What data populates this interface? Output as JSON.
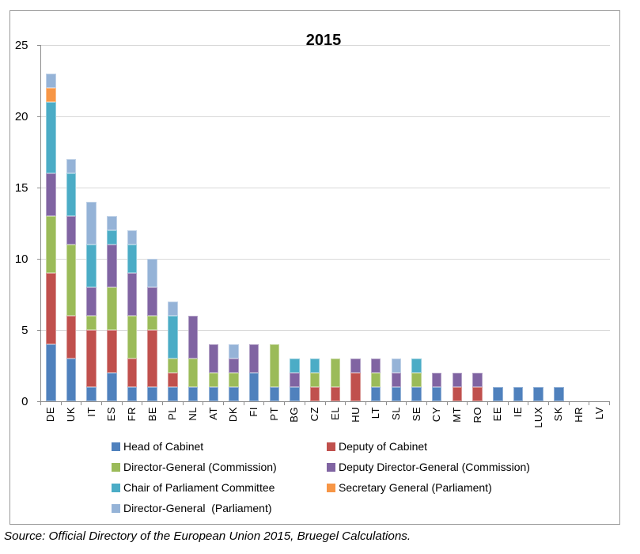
{
  "title": "2015",
  "source_note": "Source: Official Directory of the European Union 2015, Bruegel Calculations.",
  "chart_data": {
    "type": "bar",
    "stacked": true,
    "title": "2015",
    "categories": [
      "DE",
      "UK",
      "IT",
      "ES",
      "FR",
      "BE",
      "PL",
      "NL",
      "AT",
      "DK",
      "FI",
      "PT",
      "BG",
      "CZ",
      "EL",
      "HU",
      "LT",
      "SL",
      "SE",
      "CY",
      "MT",
      "RO",
      "EE",
      "IE",
      "LUX",
      "SK",
      "HR",
      "LV"
    ],
    "series": [
      {
        "name": "Head of Cabinet",
        "color": "#4F81BD",
        "values": [
          4,
          3,
          1,
          2,
          1,
          1,
          1,
          1,
          1,
          1,
          2,
          1,
          1,
          0,
          0,
          0,
          1,
          1,
          1,
          1,
          0,
          0,
          1,
          1,
          1,
          1,
          0,
          0
        ]
      },
      {
        "name": "Deputy of Cabinet",
        "color": "#C0504D",
        "values": [
          5,
          3,
          4,
          3,
          2,
          4,
          1,
          0,
          0,
          0,
          0,
          0,
          0,
          1,
          1,
          2,
          0,
          0,
          0,
          0,
          1,
          1,
          0,
          0,
          0,
          0,
          0,
          0
        ]
      },
      {
        "name": "Director-General (Commission)",
        "color": "#9BBB59",
        "values": [
          4,
          5,
          1,
          3,
          3,
          1,
          1,
          2,
          1,
          1,
          0,
          3,
          0,
          1,
          2,
          0,
          1,
          0,
          1,
          0,
          0,
          0,
          0,
          0,
          0,
          0,
          0,
          0
        ]
      },
      {
        "name": "Deputy Director-General (Commission)",
        "color": "#8064A2",
        "values": [
          3,
          2,
          2,
          3,
          3,
          2,
          0,
          3,
          2,
          1,
          2,
          0,
          1,
          0,
          0,
          1,
          1,
          1,
          0,
          1,
          1,
          1,
          0,
          0,
          0,
          0,
          0,
          0
        ]
      },
      {
        "name": "Chair of Parliament Committee",
        "color": "#4BACC6",
        "values": [
          5,
          3,
          3,
          1,
          2,
          0,
          3,
          0,
          0,
          0,
          0,
          0,
          1,
          1,
          0,
          0,
          0,
          0,
          1,
          0,
          0,
          0,
          0,
          0,
          0,
          0,
          0,
          0
        ]
      },
      {
        "name": "Secretary General (Parliament)",
        "color": "#F79646",
        "values": [
          1,
          0,
          0,
          0,
          0,
          0,
          0,
          0,
          0,
          0,
          0,
          0,
          0,
          0,
          0,
          0,
          0,
          0,
          0,
          0,
          0,
          0,
          0,
          0,
          0,
          0,
          0,
          0
        ]
      },
      {
        "name": "Director-General  (Parliament)",
        "color": "#95B3D7",
        "values": [
          1,
          1,
          3,
          1,
          1,
          2,
          1,
          0,
          0,
          1,
          0,
          0,
          0,
          0,
          0,
          0,
          0,
          1,
          0,
          0,
          0,
          0,
          0,
          0,
          0,
          0,
          0,
          0
        ]
      }
    ],
    "ylim": [
      0,
      25
    ],
    "ytick_step": 5,
    "grid": true,
    "legend_position": "bottom"
  }
}
